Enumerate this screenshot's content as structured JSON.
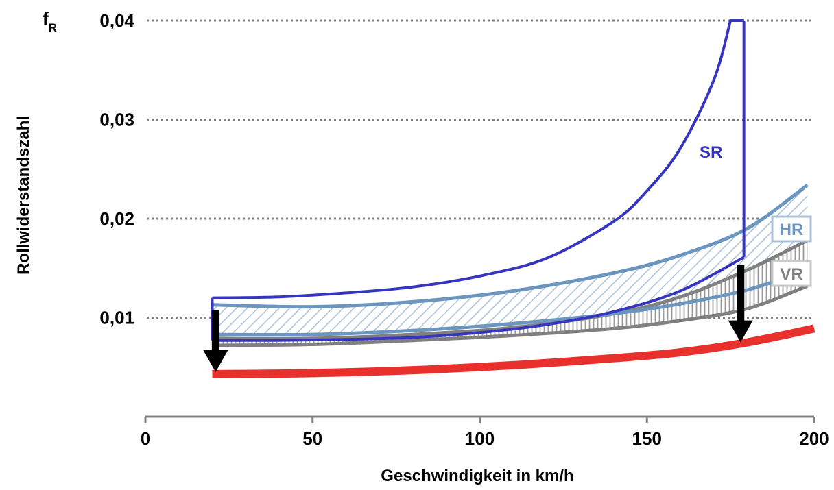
{
  "chart_data": {
    "type": "line",
    "xlabel": "Geschwindigkeit in km/h",
    "ylabel": "Rollwiderstandszahl",
    "y_symbol": "f",
    "y_symbol_sub": "R",
    "xlim": [
      0,
      200
    ],
    "ylim": [
      0,
      0.04
    ],
    "x_ticks": [
      {
        "value": 0,
        "label": "0"
      },
      {
        "value": 50,
        "label": "50"
      },
      {
        "value": 100,
        "label": "100"
      },
      {
        "value": 150,
        "label": "150"
      },
      {
        "value": 200,
        "label": "200"
      }
    ],
    "y_ticks": [
      {
        "value": 0.01,
        "label": "0,01"
      },
      {
        "value": 0.02,
        "label": "0,02"
      },
      {
        "value": 0.03,
        "label": "0,03"
      },
      {
        "value": 0.04,
        "label": "0,04"
      }
    ],
    "grid": "horizontal dotted",
    "series": [
      {
        "name": "SR",
        "color": "#3535c0",
        "upper": {
          "x": [
            20,
            40,
            60,
            80,
            100,
            120,
            140,
            150,
            160,
            170,
            175,
            179
          ],
          "y": [
            0.012,
            0.0121,
            0.0125,
            0.0131,
            0.0142,
            0.016,
            0.0197,
            0.0228,
            0.0271,
            0.034,
            0.04,
            0.04
          ]
        },
        "lower": {
          "x": [
            20,
            40,
            60,
            80,
            100,
            120,
            140,
            160,
            179
          ],
          "y": [
            0.0077,
            0.0077,
            0.0078,
            0.008,
            0.0085,
            0.0093,
            0.0106,
            0.0127,
            0.0161
          ]
        },
        "closed_ends": true
      },
      {
        "name": "HR",
        "color": "#6b96bf",
        "upper": {
          "x": [
            20,
            50,
            80,
            110,
            140,
            160,
            180,
            198
          ],
          "y": [
            0.0113,
            0.0111,
            0.0116,
            0.0127,
            0.0145,
            0.0163,
            0.019,
            0.0234
          ]
        },
        "lower": {
          "x": [
            20,
            50,
            80,
            110,
            140,
            160,
            180,
            198
          ],
          "y": [
            0.0083,
            0.0083,
            0.0087,
            0.0094,
            0.0104,
            0.0114,
            0.0128,
            0.0148
          ]
        }
      },
      {
        "name": "VR",
        "color": "#808080",
        "upper": {
          "x": [
            20,
            50,
            80,
            110,
            140,
            160,
            180,
            198
          ],
          "y": [
            0.0079,
            0.0079,
            0.0083,
            0.009,
            0.0104,
            0.0121,
            0.0148,
            0.0178
          ]
        },
        "lower": {
          "x": [
            20,
            50,
            80,
            110,
            140,
            160,
            180,
            198
          ],
          "y": [
            0.0072,
            0.0073,
            0.0077,
            0.0082,
            0.0089,
            0.0097,
            0.0109,
            0.0132
          ]
        }
      },
      {
        "color": "#e8302d",
        "line": {
          "x": [
            20,
            50,
            80,
            110,
            140,
            160,
            180,
            200
          ],
          "y": [
            0.0043,
            0.0044,
            0.0047,
            0.0052,
            0.0059,
            0.0065,
            0.0075,
            0.0089
          ]
        }
      }
    ],
    "arrows": [
      {
        "x": 21,
        "from": 0.0108,
        "to": 0.0045
      },
      {
        "x": 178,
        "from": 0.0153,
        "to": 0.0075
      }
    ]
  }
}
